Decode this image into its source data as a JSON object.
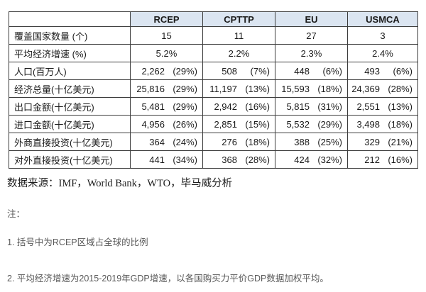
{
  "colors": {
    "header_bg": "#dbe5f1",
    "border": "#3d3d3d",
    "table_text": "#1a1a1a",
    "note_text": "#595959"
  },
  "table": {
    "header": {
      "corner": "",
      "columns": [
        "RCEP",
        "CPTTP",
        "EU",
        "USMCA"
      ]
    },
    "rows": [
      {
        "label": "覆盖国家数量 (个)",
        "mode": "center",
        "cells": [
          "15",
          "11",
          "27",
          "3"
        ]
      },
      {
        "label": "平均经济增速 (%)",
        "mode": "center",
        "cells": [
          "5.2%",
          "2.2%",
          "2.3%",
          "2.4%"
        ]
      },
      {
        "label": "人口(百万人)",
        "mode": "pair",
        "cells": [
          {
            "num": "2,262",
            "pct": "(29%)"
          },
          {
            "num": "508",
            "pct": "(7%)"
          },
          {
            "num": "448",
            "pct": "(6%)"
          },
          {
            "num": "493",
            "pct": "(6%)"
          }
        ]
      },
      {
        "label": "经济总量(十亿美元)",
        "mode": "pair",
        "cells": [
          {
            "num": "25,816",
            "pct": "(29%)"
          },
          {
            "num": "11,197",
            "pct": "(13%)"
          },
          {
            "num": "15,593",
            "pct": "(18%)"
          },
          {
            "num": "24,369",
            "pct": "(28%)"
          }
        ]
      },
      {
        "label": "出口金额(十亿美元)",
        "mode": "pair",
        "cells": [
          {
            "num": "5,481",
            "pct": "(29%)"
          },
          {
            "num": "2,942",
            "pct": "(16%)"
          },
          {
            "num": "5,815",
            "pct": "(31%)"
          },
          {
            "num": "2,551",
            "pct": "(13%)"
          }
        ]
      },
      {
        "label": "进口金额(十亿美元)",
        "mode": "pair",
        "cells": [
          {
            "num": "4,956",
            "pct": "(26%)"
          },
          {
            "num": "2,851",
            "pct": "(15%)"
          },
          {
            "num": "5,532",
            "pct": "(29%)"
          },
          {
            "num": "3,498",
            "pct": "(18%)"
          }
        ]
      },
      {
        "label": "外商直接投资(十亿美元)",
        "mode": "pair",
        "cells": [
          {
            "num": "364",
            "pct": "(24%)"
          },
          {
            "num": "276",
            "pct": "(18%)"
          },
          {
            "num": "388",
            "pct": "(25%)"
          },
          {
            "num": "329",
            "pct": "(21%)"
          }
        ]
      },
      {
        "label": "对外直接投资(十亿美元)",
        "mode": "pair",
        "cells": [
          {
            "num": "441",
            "pct": "(34%)"
          },
          {
            "num": "368",
            "pct": "(28%)"
          },
          {
            "num": "424",
            "pct": "(32%)"
          },
          {
            "num": "212",
            "pct": "(16%)"
          }
        ]
      }
    ]
  },
  "source_line": "数据来源：IMF，World Bank，WTO，毕马威分析",
  "notes": {
    "heading": "注：",
    "items": [
      "1. 括号中为RCEP区域占全球的比例",
      "2. 平均经济增速为2015-2019年GDP增速，以各国购买力平价GDP数据加权平均。"
    ]
  }
}
